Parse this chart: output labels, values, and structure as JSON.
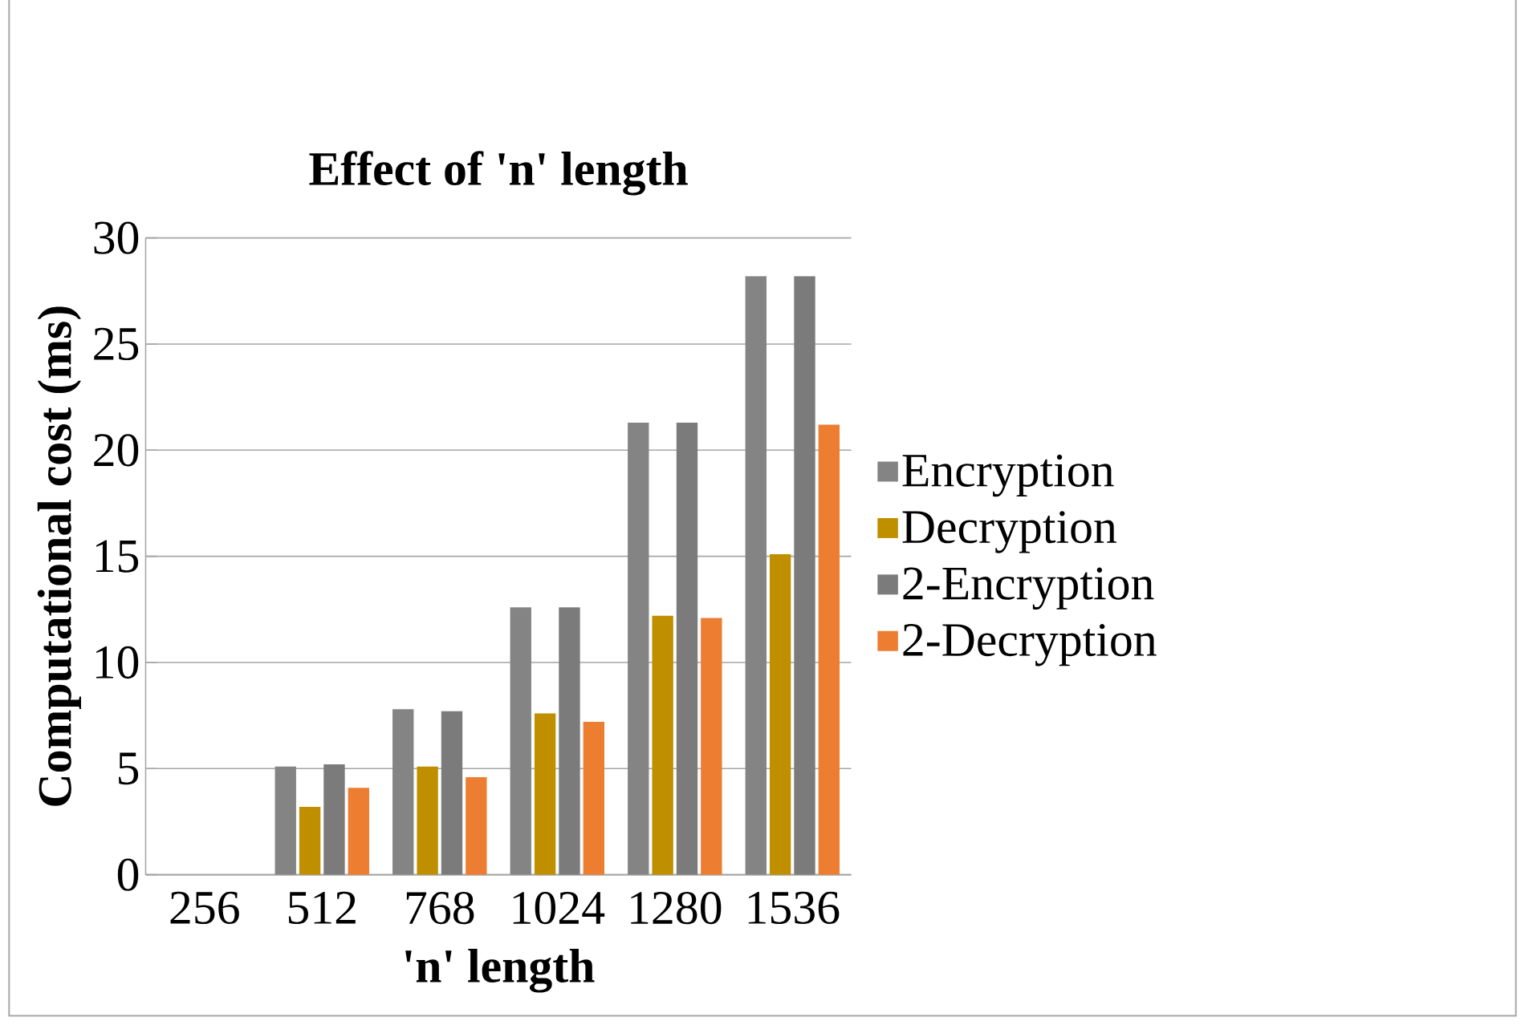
{
  "chart_data": {
    "type": "bar",
    "title": "Effect of 'n' length",
    "xlabel": "'n' length",
    "ylabel": "Computational cost (ms)",
    "categories": [
      "256",
      "512",
      "768",
      "1024",
      "1280",
      "1536"
    ],
    "series": [
      {
        "name": "Encryption",
        "color": "#848484",
        "values": [
          0,
          5.1,
          7.8,
          12.6,
          21.3,
          28.2
        ]
      },
      {
        "name": "Decryption",
        "color": "#bf8f00",
        "values": [
          0,
          3.2,
          5.1,
          7.6,
          12.2,
          15.1
        ]
      },
      {
        "name": "2-Encryption",
        "color": "#7b7b7b",
        "values": [
          0,
          5.2,
          7.7,
          12.6,
          21.3,
          28.2
        ]
      },
      {
        "name": "2-Decryption",
        "color": "#ed7d31",
        "values": [
          0,
          4.1,
          4.6,
          7.2,
          12.1,
          21.2
        ]
      }
    ],
    "ylim": [
      0,
      30
    ],
    "yticks": [
      0,
      5,
      10,
      15,
      20,
      25,
      30
    ],
    "grid": "y",
    "legend": "right"
  }
}
